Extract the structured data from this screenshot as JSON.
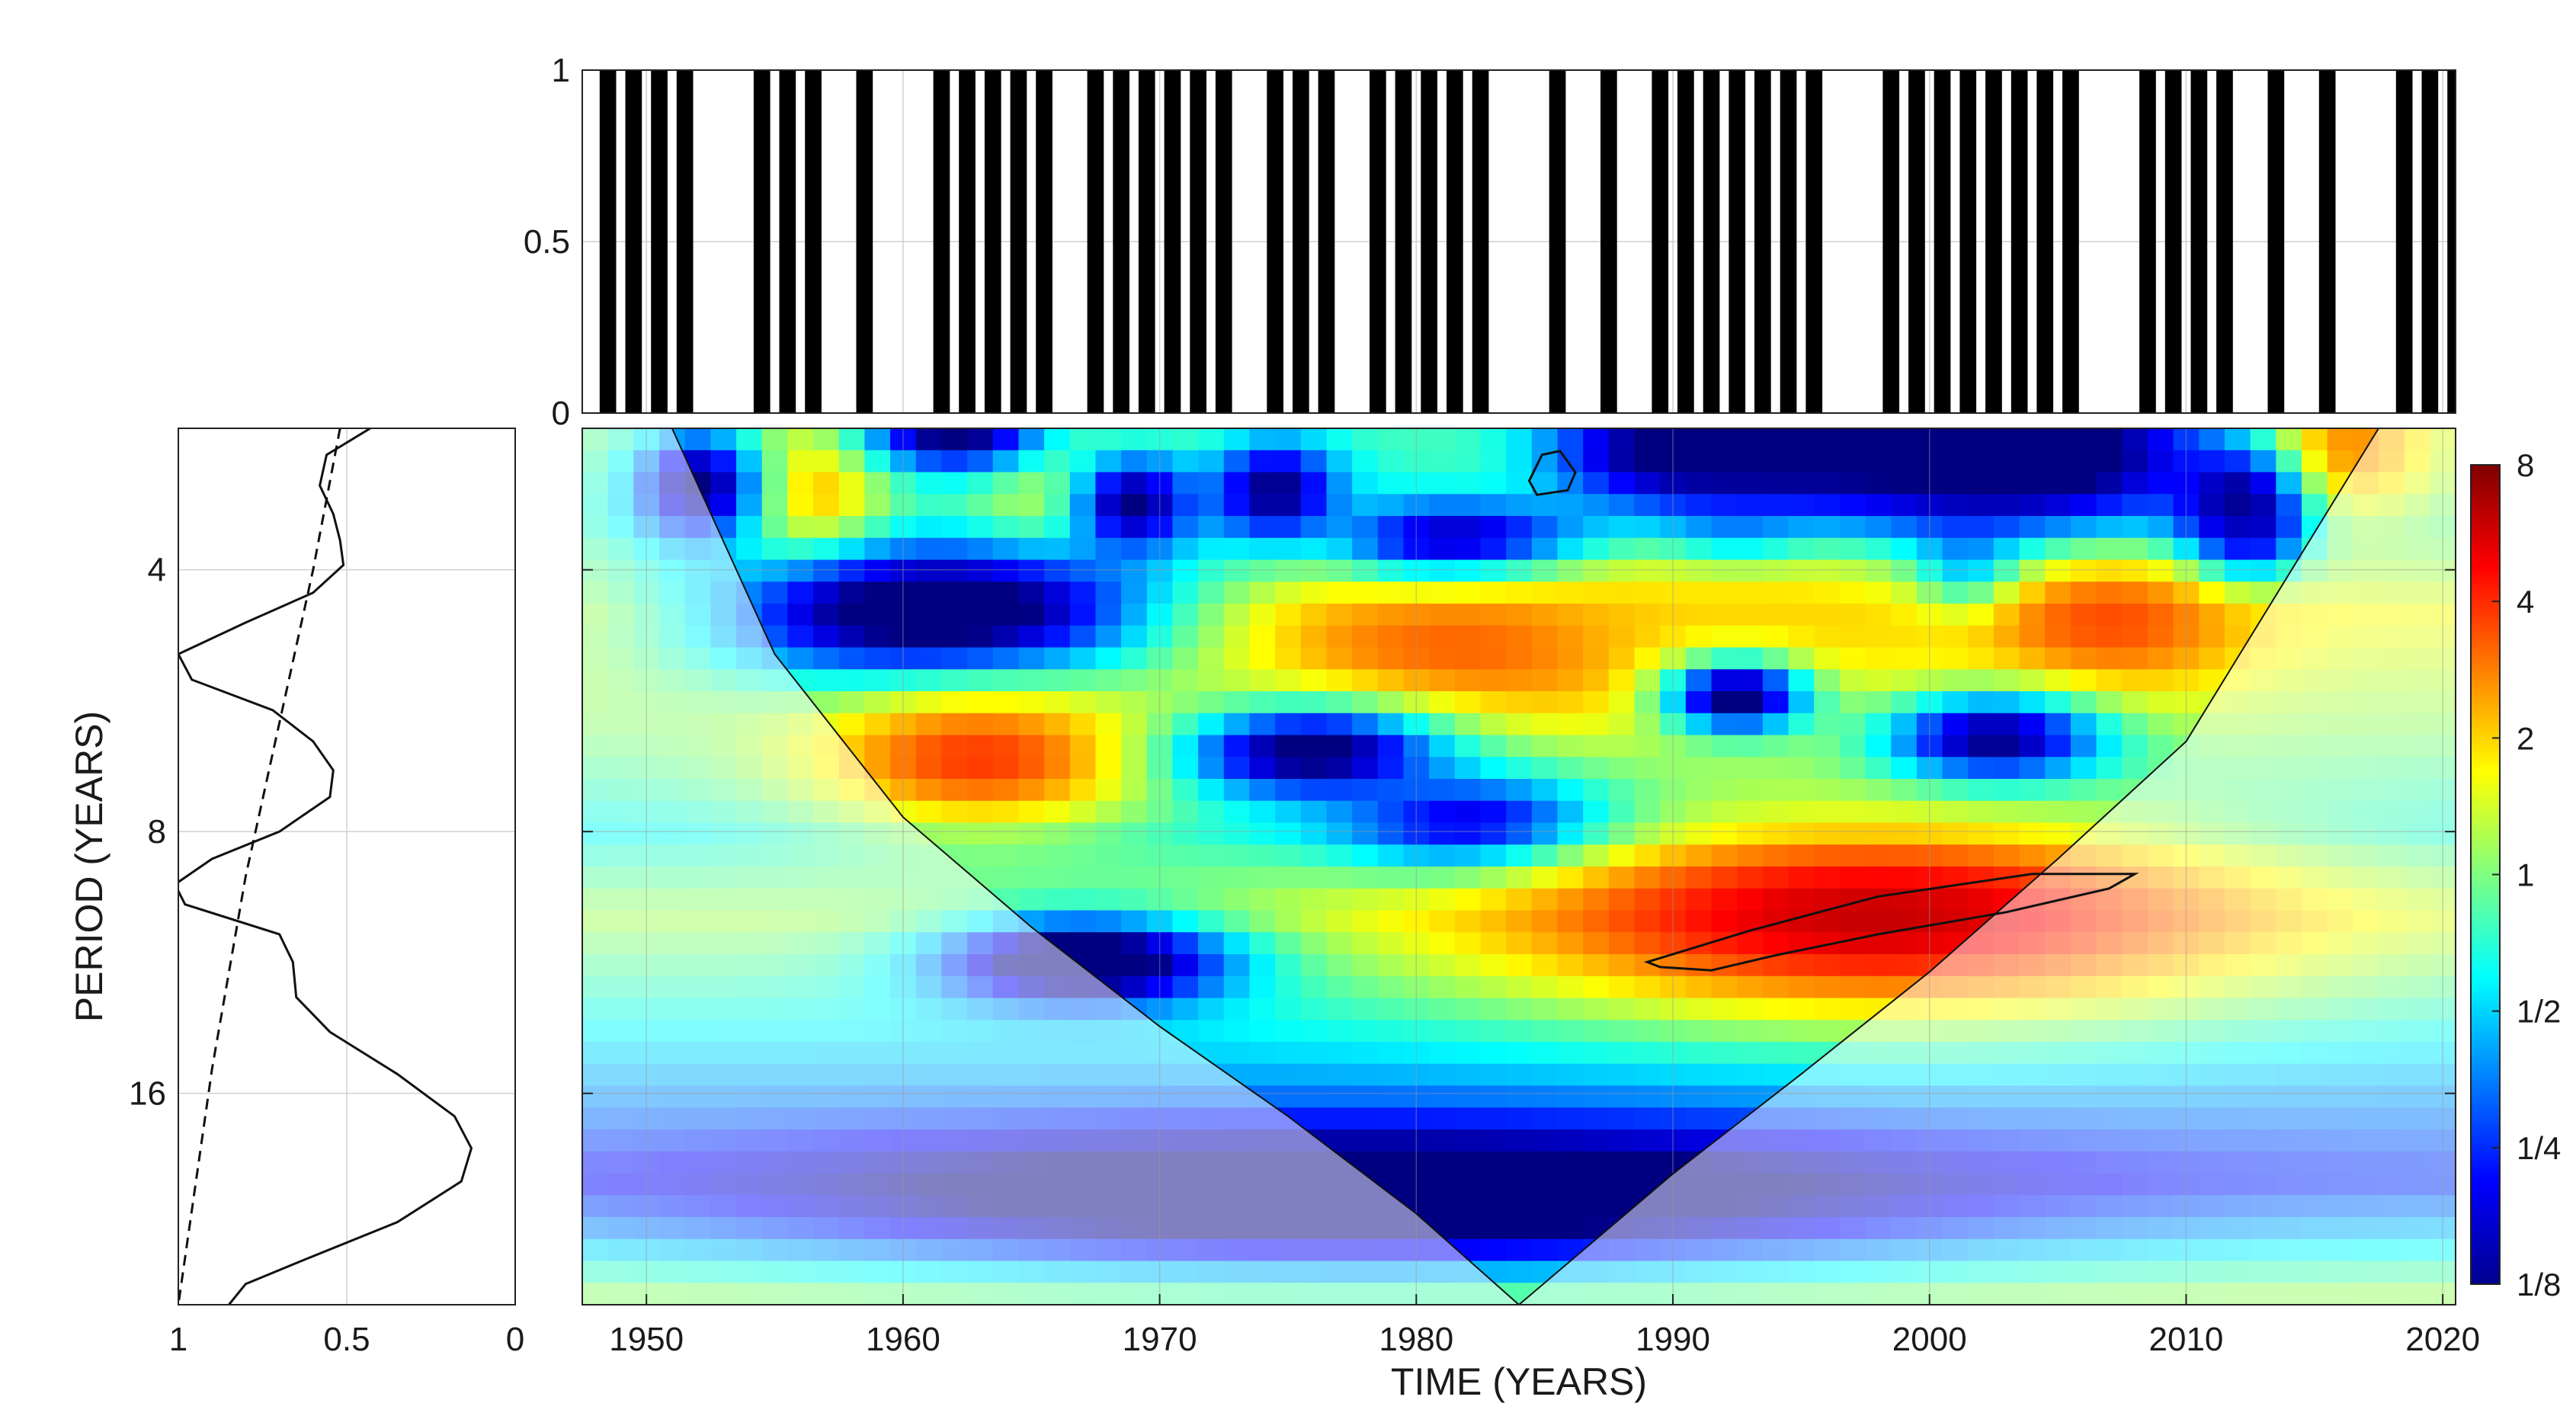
{
  "chart_data": [
    {
      "type": "bar",
      "panel": "top",
      "description_visible": "binary series shown as black vertical bars",
      "xlim": [
        1947.5,
        2020.5
      ],
      "ylim": [
        0,
        1
      ],
      "yticks": [
        "0",
        "0.5",
        "1"
      ],
      "grid": true,
      "bar_color": "#000000",
      "x": [
        1948,
        1949,
        1950,
        1951,
        1954,
        1955,
        1956,
        1958,
        1961,
        1962,
        1963,
        1964,
        1965,
        1967,
        1968,
        1969,
        1970,
        1971,
        1972,
        1974,
        1975,
        1976,
        1978,
        1979,
        1980,
        1981,
        1982,
        1985,
        1987,
        1989,
        1990,
        1991,
        1992,
        1993,
        1994,
        1995,
        1998,
        1999,
        2000,
        2001,
        2002,
        2003,
        2004,
        2005,
        2008,
        2009,
        2010,
        2011,
        2013,
        2015,
        2018,
        2019,
        2020
      ],
      "values": [
        1,
        1,
        1,
        1,
        1,
        1,
        1,
        1,
        1,
        1,
        1,
        1,
        1,
        1,
        1,
        1,
        1,
        1,
        1,
        1,
        1,
        1,
        1,
        1,
        1,
        1,
        1,
        1,
        1,
        1,
        1,
        1,
        1,
        1,
        1,
        1,
        1,
        1,
        1,
        1,
        1,
        1,
        1,
        1,
        1,
        1,
        1,
        1,
        1,
        1,
        1,
        1,
        1
      ]
    },
    {
      "type": "line",
      "panel": "global-wavelet-spectrum",
      "xlim": [
        1,
        0
      ],
      "x_reversed": true,
      "xticks": [
        "1",
        "0.5",
        "0"
      ],
      "ylabel": "PERIOD (YEARS)",
      "ylim": [
        2.75,
        28
      ],
      "y_scale": "log2",
      "y_reversed": true,
      "yticks": [
        "4",
        "8",
        "16"
      ],
      "grid": true,
      "series": [
        {
          "style": "solid",
          "x": [
            0.43,
            0.56,
            0.58,
            0.54,
            0.52,
            0.51,
            0.6,
            0.8,
            1.0,
            0.96,
            0.72,
            0.6,
            0.54,
            0.55,
            0.7,
            0.9,
            1.01,
            0.98,
            0.7,
            0.66,
            0.65,
            0.55,
            0.35,
            0.18,
            0.13,
            0.16,
            0.35,
            0.62,
            0.8,
            0.85
          ],
          "y": [
            2.75,
            2.95,
            3.2,
            3.45,
            3.7,
            3.95,
            4.25,
            4.6,
            5.0,
            5.35,
            5.8,
            6.3,
            6.8,
            7.3,
            8.0,
            8.6,
            9.2,
            9.7,
            10.5,
            11.3,
            12.4,
            13.6,
            15.2,
            17.0,
            18.5,
            20.2,
            22.5,
            24.8,
            26.5,
            28.0
          ]
        },
        {
          "style": "dashed",
          "x": [
            0.52,
            0.6,
            0.7,
            0.8,
            0.9,
            1.0
          ],
          "y": [
            2.75,
            4.0,
            6.0,
            9.0,
            15.0,
            28.0
          ]
        }
      ]
    },
    {
      "type": "heatmap",
      "panel": "wavelet-power-spectrum",
      "xlabel": "TIME (YEARS)",
      "xlim": [
        1947.5,
        2020.5
      ],
      "xticks": [
        "1950",
        "1960",
        "1970",
        "1980",
        "1990",
        "2000",
        "2010",
        "2020"
      ],
      "ylim": [
        2.75,
        28
      ],
      "y_scale": "log2",
      "y_reversed": true,
      "yticks": [
        "4",
        "8",
        "16"
      ],
      "grid": true,
      "colormap": "jet",
      "colorbar": {
        "scale": "log2",
        "range": [
          0.125,
          8
        ],
        "labels": [
          "8",
          "4",
          "2",
          "1",
          "1/2",
          "1/4",
          "1/8"
        ]
      },
      "cone_of_influence": {
        "x": [
          1951,
          1955,
          1960,
          1965,
          1970,
          1975,
          1980,
          1984,
          1990,
          1995,
          2000,
          2005,
          2010,
          2017.5
        ],
        "period": [
          2.75,
          5.0,
          7.7,
          10.3,
          13.4,
          17.0,
          22.0,
          28.0,
          19.8,
          15.2,
          11.6,
          8.6,
          6.3,
          2.75
        ],
        "outside_shading": "#ffffff"
      },
      "significance_contours": [
        {
          "x": [
            1984.9,
            1985.6,
            1986.2,
            1985.9,
            1984.7,
            1984.4
          ],
          "period": [
            2.95,
            2.92,
            3.09,
            3.24,
            3.28,
            3.16
          ]
        },
        {
          "x": [
            1989,
            1993,
            1998,
            2004,
            2008,
            2007,
            2003,
            1998,
            1994,
            1991.5,
            1989.5
          ],
          "period": [
            11.3,
            10.4,
            9.5,
            8.95,
            8.95,
            9.3,
            9.9,
            10.5,
            11.1,
            11.55,
            11.45
          ]
        }
      ],
      "power_features": [
        {
          "x": 1956.5,
          "period": 3.4,
          "sx": 2.2,
          "sp": 0.22,
          "value": 3.0
        },
        {
          "x": 1966.5,
          "period": 3.4,
          "sx": 3.0,
          "sp": 0.18,
          "value": 2.2
        },
        {
          "x": 1985,
          "period": 3.05,
          "sx": 3.2,
          "sp": 0.2,
          "value": 5.0
        },
        {
          "x": 2015.5,
          "period": 2.9,
          "sx": 3.0,
          "sp": 0.2,
          "value": 4.0
        },
        {
          "x": 1977,
          "period": 3.85,
          "sx": 2.5,
          "sp": 0.16,
          "value": 2.2
        },
        {
          "x": 1992,
          "period": 2.95,
          "sx": 7.0,
          "sp": 0.22,
          "value": 0.08
        },
        {
          "x": 2003,
          "period": 2.95,
          "sx": 6.0,
          "sp": 0.25,
          "value": 0.07
        },
        {
          "x": 1962,
          "period": 2.75,
          "sx": 2.5,
          "sp": 0.12,
          "value": 0.1
        },
        {
          "x": 1952,
          "period": 3.2,
          "sx": 1.8,
          "sp": 0.15,
          "value": 0.12
        },
        {
          "x": 1969,
          "period": 3.35,
          "sx": 1.8,
          "sp": 0.14,
          "value": 0.12
        },
        {
          "x": 1974.5,
          "period": 3.25,
          "sx": 1.8,
          "sp": 0.14,
          "value": 0.12
        },
        {
          "x": 2012,
          "period": 3.35,
          "sx": 1.6,
          "sp": 0.14,
          "value": 0.12
        },
        {
          "x": 1982,
          "period": 3.75,
          "sx": 4.0,
          "sp": 0.12,
          "value": 0.08
        },
        {
          "x": 1992.5,
          "period": 3.7,
          "sx": 1.8,
          "sp": 0.12,
          "value": 0.12
        },
        {
          "x": 2012,
          "period": 3.65,
          "sx": 1.6,
          "sp": 0.12,
          "value": 0.12
        },
        {
          "x": 2001.5,
          "period": 4.0,
          "sx": 1.5,
          "sp": 0.12,
          "value": 0.12
        },
        {
          "x": 1961.5,
          "period": 4.5,
          "sx": 6.5,
          "sp": 0.2,
          "value": 0.07
        },
        {
          "x": 1983,
          "period": 4.9,
          "sx": 7.0,
          "sp": 0.2,
          "value": 3.5
        },
        {
          "x": 1993,
          "period": 4.6,
          "sx": 6.0,
          "sp": 0.25,
          "value": 2.0
        },
        {
          "x": 2007,
          "period": 4.6,
          "sx": 4.0,
          "sp": 0.2,
          "value": 3.5
        },
        {
          "x": 1963,
          "period": 6.6,
          "sx": 5.0,
          "sp": 0.2,
          "value": 3.8
        },
        {
          "x": 1992.5,
          "period": 5.6,
          "sx": 2.0,
          "sp": 0.1,
          "value": 0.1
        },
        {
          "x": 2002.5,
          "period": 6.3,
          "sx": 3.0,
          "sp": 0.12,
          "value": 0.1
        },
        {
          "x": 1976,
          "period": 6.5,
          "sx": 3.5,
          "sp": 0.12,
          "value": 0.1
        },
        {
          "x": 1982.5,
          "period": 7.9,
          "sx": 3.5,
          "sp": 0.12,
          "value": 0.1
        },
        {
          "x": 1998,
          "period": 10.0,
          "sx": 11.0,
          "sp": 0.28,
          "value": 6.0
        },
        {
          "x": 1967,
          "period": 11.3,
          "sx": 4.0,
          "sp": 0.12,
          "value": 0.07
        },
        {
          "x": 1978,
          "period": 21.0,
          "sx": 16.0,
          "sp": 0.18,
          "value": 0.07
        }
      ],
      "background_rows": [
        {
          "period": 2.75,
          "value": 1.0
        },
        {
          "period": 3.5,
          "value": 0.8
        },
        {
          "period": 4.5,
          "value": 1.6
        },
        {
          "period": 6.0,
          "value": 1.1
        },
        {
          "period": 8.0,
          "value": 0.6
        },
        {
          "period": 10.0,
          "value": 1.2
        },
        {
          "period": 12.5,
          "value": 0.7
        },
        {
          "period": 16.0,
          "value": 0.4
        },
        {
          "period": 20.0,
          "value": 0.25
        },
        {
          "period": 24.0,
          "value": 0.6
        },
        {
          "period": 28.0,
          "value": 1.3
        }
      ]
    }
  ]
}
